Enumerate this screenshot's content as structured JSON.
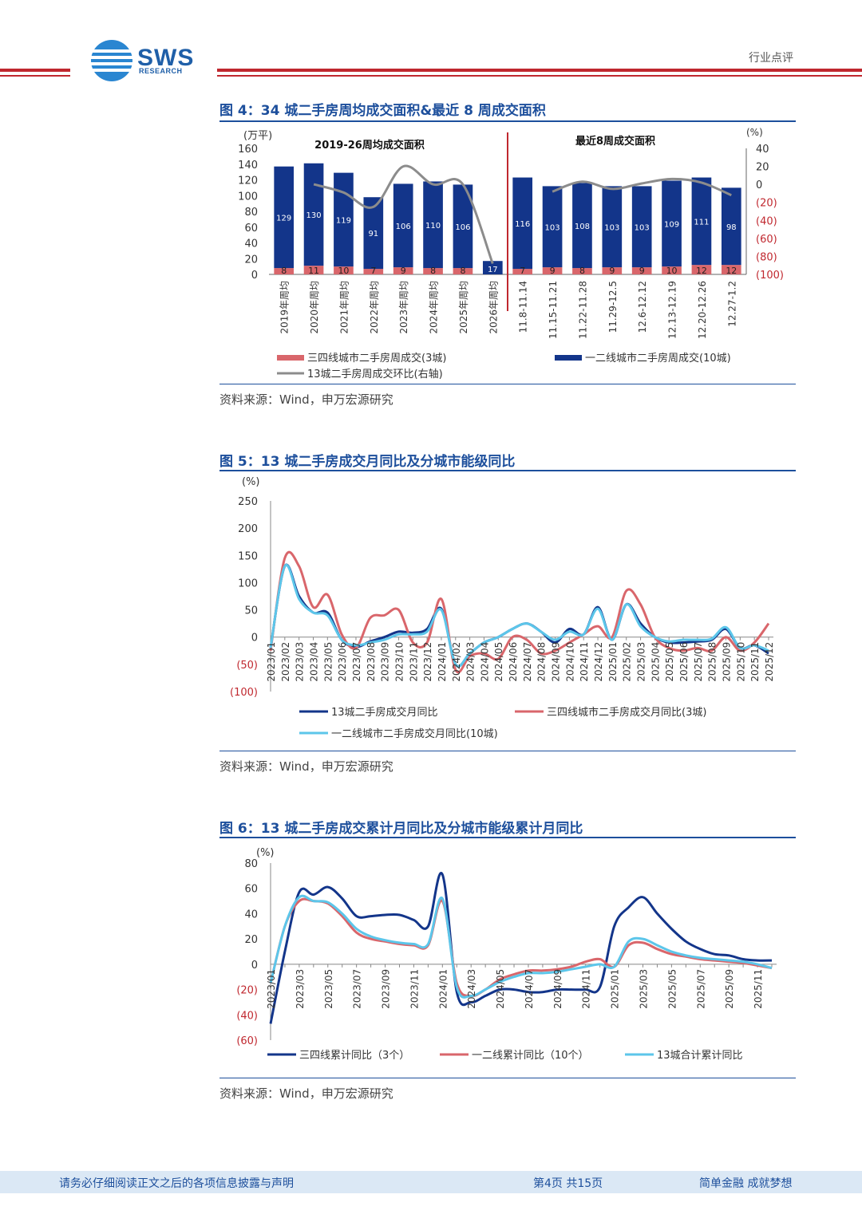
{
  "header": {
    "logo_text": "SWS",
    "logo_sub": "RESEARCH",
    "category": "行业点评"
  },
  "figures": {
    "fig4": {
      "title": "图 4：34 城二手房周均成交面积&最近 8 周成交面积",
      "source": "资料来源：Wind，申万宏源研究"
    },
    "fig5": {
      "title": "图 5：13 城二手房成交月同比及分城市能级同比",
      "source": "资料来源：Wind，申万宏源研究"
    },
    "fig6": {
      "title": "图 6：13 城二手房成交累计月同比及分城市能级累计月同比",
      "source": "资料来源：Wind，申万宏源研究"
    }
  },
  "footer": {
    "disclaimer": "请务必仔细阅读正文之后的各项信息披露与声明",
    "page": "第4页 共15页",
    "slogan": "简单金融 成就梦想"
  },
  "colors": {
    "brand": "#1d4f9c",
    "navy": "#13358a",
    "red": "#d9666b",
    "gray": "#8c8c8c",
    "light_blue": "#5cc6ea",
    "accent_red": "#c0282f"
  },
  "chart_data": [
    {
      "id": "fig4",
      "type": "bar",
      "stacked": true,
      "left_unit": "(万平)",
      "right_unit": "(%)",
      "left_ticks": [
        "160",
        "140",
        "120",
        "100",
        "80",
        "60",
        "40",
        "20",
        "0"
      ],
      "right_ticks": [
        "40",
        "20",
        "0",
        "(20)",
        "(40)",
        "(60)",
        "(80)",
        "(100)"
      ],
      "ylim_left": [
        0,
        160
      ],
      "ylim_right": [
        -100,
        40
      ],
      "section_labels": [
        "2019-26周均成交面积",
        "最近8周成交面积"
      ],
      "categories": [
        "2019年周均",
        "2020年周均",
        "2021年周均",
        "2022年周均",
        "2023年周均",
        "2024年周均",
        "2025年周均",
        "2026年周均",
        "11.8-11.14",
        "11.15-11.21",
        "11.22-11.28",
        "11.29-12.5",
        "12.6-12.12",
        "12.13-12.19",
        "12.20-12.26",
        "12.27-1.2"
      ],
      "series": [
        {
          "name": "三四线城市二手房周成交(3城)",
          "values": [
            8,
            11,
            10,
            7,
            9,
            8,
            8,
            null,
            7,
            9,
            8,
            9,
            9,
            10,
            12,
            12
          ],
          "labels": [
            "8",
            "11",
            "10",
            "7",
            "9",
            "8",
            "8",
            "",
            "7",
            "9",
            "8",
            "9",
            "9",
            "10",
            "12",
            "12"
          ]
        },
        {
          "name": "一二线城市二手房周成交(10城)",
          "values": [
            129,
            130,
            119,
            91,
            106,
            110,
            106,
            17,
            116,
            103,
            108,
            103,
            103,
            109,
            111,
            98
          ],
          "labels": [
            "129",
            "130",
            "119",
            "91",
            "106",
            "110",
            "106",
            "17",
            "116",
            "103",
            "108",
            "103",
            "103",
            "109",
            "111",
            "98"
          ]
        },
        {
          "name": "13城二手房周成交环比(右轴)",
          "groups": [
            [
              null,
              0,
              -9,
              -25,
              20,
              0,
              0,
              -88
            ],
            [
              null,
              -8,
              3,
              -5,
              1,
              6,
              2,
              -12
            ]
          ]
        }
      ],
      "legend": [
        "三四线城市二手房周成交(3城)",
        "一二线城市二手房周成交(10城)",
        "13城二手房周成交环比(右轴)"
      ]
    },
    {
      "id": "fig5",
      "type": "line",
      "unit": "(%)",
      "y_ticks": [
        "250",
        "200",
        "150",
        "100",
        "50",
        "0",
        "(50)",
        "(100)"
      ],
      "ylim": [
        -100,
        250
      ],
      "x_labels": [
        "2023/01",
        "2023/02",
        "2023/03",
        "2023/04",
        "2023/05",
        "2023/06",
        "2023/07",
        "2023/08",
        "2023/09",
        "2023/10",
        "2023/11",
        "2023/12",
        "2024/01",
        "2024/02",
        "2024/03",
        "2024/04",
        "2024/05",
        "2024/06",
        "2024/07",
        "2024/08",
        "2024/09",
        "2024/10",
        "2024/11",
        "2024/12",
        "2025/01",
        "2025/02",
        "2025/03",
        "2025/04",
        "2025/05",
        "2025/06",
        "2025/07",
        "2025/08",
        "2025/09",
        "2025/10",
        "2025/11",
        "2025/12"
      ],
      "x_label_show": [
        "2023/01",
        "2023/02",
        "2023/03",
        "2023/04",
        "2023/05",
        "2023/06",
        "2023/07",
        "2023/08",
        "2023/09",
        "2023/10",
        "2023/11",
        "2023/12",
        "2024/01",
        "2024/02",
        "2024/03",
        "2024/04",
        "2024/05",
        "2024/06",
        "2024/07",
        "2024/08",
        "2024/09",
        "2024/10",
        "2024/11",
        "2024/12",
        "2025/01",
        "2025/02",
        "2025/03",
        "2025/04",
        "2025/05",
        "2025/06",
        "2025/07",
        "2025/08",
        "2025/09",
        "2025/10",
        "2025/11",
        "2025/12"
      ],
      "series": [
        {
          "name": "13城二手房成交月同比",
          "values": [
            -20,
            130,
            75,
            45,
            45,
            -5,
            -18,
            -8,
            0,
            10,
            8,
            15,
            52,
            -50,
            -30,
            -10,
            0,
            15,
            25,
            10,
            -10,
            15,
            5,
            55,
            -5,
            60,
            25,
            0,
            -10,
            -10,
            -8,
            -5,
            15,
            -20,
            -15,
            -30
          ]
        },
        {
          "name": "三四线城市二手房成交月同比(3城)",
          "values": [
            -25,
            145,
            130,
            55,
            78,
            5,
            -20,
            35,
            40,
            50,
            -10,
            -10,
            70,
            -60,
            -35,
            -30,
            -40,
            0,
            -5,
            -30,
            -25,
            -10,
            5,
            20,
            0,
            85,
            60,
            0,
            -20,
            -25,
            -20,
            -25,
            0,
            -25,
            -10,
            25
          ]
        },
        {
          "name": "一二线城市二手房成交月同比(10城)",
          "values": [
            -20,
            130,
            70,
            45,
            40,
            -5,
            -15,
            -10,
            -5,
            5,
            5,
            10,
            50,
            -50,
            -30,
            -10,
            0,
            15,
            25,
            10,
            -5,
            10,
            5,
            52,
            -5,
            60,
            20,
            0,
            -8,
            -5,
            -5,
            -3,
            18,
            -20,
            -15,
            -25
          ]
        }
      ],
      "legend": [
        "13城二手房成交月同比",
        "三四线城市二手房成交月同比(3城)",
        "一二线城市二手房成交月同比(10城)"
      ]
    },
    {
      "id": "fig6",
      "type": "line",
      "unit": "(%)",
      "y_ticks": [
        "80",
        "60",
        "40",
        "20",
        "0",
        "(20)",
        "(40)",
        "(60)"
      ],
      "ylim": [
        -60,
        80
      ],
      "x_labels": [
        "2023/01",
        "2023/02",
        "2023/03",
        "2023/04",
        "2023/05",
        "2023/06",
        "2023/07",
        "2023/08",
        "2023/09",
        "2023/10",
        "2023/11",
        "2023/12",
        "2024/01",
        "2024/02",
        "2024/03",
        "2024/04",
        "2024/05",
        "2024/06",
        "2024/07",
        "2024/08",
        "2024/09",
        "2024/10",
        "2024/11",
        "2024/12",
        "2025/01",
        "2025/02",
        "2025/03",
        "2025/04",
        "2025/05",
        "2025/06",
        "2025/07",
        "2025/08",
        "2025/09",
        "2025/10",
        "2025/11",
        "2025/12"
      ],
      "x_label_show": [
        "2023/01",
        "2023/03",
        "2023/05",
        "2023/07",
        "2023/09",
        "2023/11",
        "2024/01",
        "2024/03",
        "2024/05",
        "2024/07",
        "2024/09",
        "2024/11",
        "2025/01",
        "2025/03",
        "2025/05",
        "2025/07",
        "2025/09",
        "2025/11"
      ],
      "series": [
        {
          "name": "三四线累计同比（3个）",
          "values": [
            -47,
            10,
            57,
            55,
            61,
            52,
            38,
            38,
            39,
            39,
            35,
            30,
            71,
            -22,
            -30,
            -25,
            -20,
            -20,
            -22,
            -22,
            -20,
            -20,
            -20,
            -18,
            30,
            45,
            53,
            40,
            28,
            18,
            12,
            8,
            7,
            4,
            3,
            3
          ]
        },
        {
          "name": "一二线累计同比（10个）",
          "values": [
            -15,
            30,
            50,
            50,
            48,
            38,
            25,
            20,
            18,
            16,
            15,
            15,
            50,
            -15,
            -25,
            -20,
            -12,
            -8,
            -5,
            -5,
            -4,
            -2,
            2,
            4,
            -2,
            15,
            17,
            12,
            8,
            6,
            4,
            3,
            2,
            1,
            -1,
            -3
          ]
        },
        {
          "name": "13城合计累计同比",
          "values": [
            -15,
            30,
            53,
            50,
            49,
            40,
            28,
            22,
            19,
            17,
            16,
            16,
            52,
            -18,
            -25,
            -20,
            -14,
            -10,
            -7,
            -7,
            -6,
            -4,
            -2,
            0,
            -2,
            18,
            20,
            15,
            10,
            7,
            5,
            4,
            3,
            2,
            0,
            -3
          ]
        }
      ],
      "legend": [
        "三四线累计同比（3个）",
        "一二线累计同比（10个）",
        "13城合计累计同比"
      ]
    }
  ]
}
